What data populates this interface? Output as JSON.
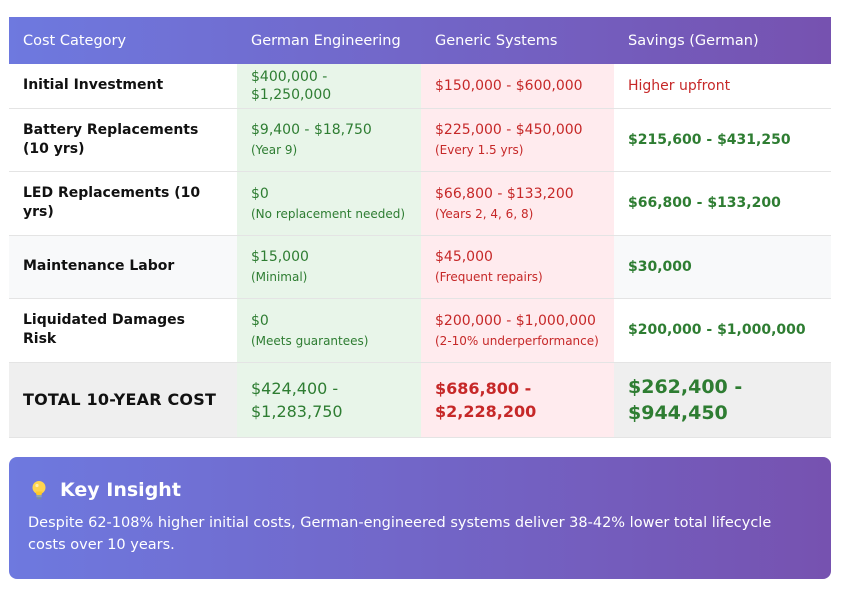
{
  "table": {
    "headers": [
      "Cost Category",
      "German Engineering",
      "Generic Systems",
      "Savings (German)"
    ],
    "rows": [
      {
        "category": "Initial Investment",
        "german": "$400,000 - $1,250,000",
        "german_note": "",
        "generic": "$150,000 - $600,000",
        "generic_note": "",
        "savings": "Higher upfront"
      },
      {
        "category": "Battery Replacements (10 yrs)",
        "german": "$9,400 - $18,750",
        "german_note": "(Year 9)",
        "generic": "$225,000 - $450,000",
        "generic_note": "(Every 1.5 yrs)",
        "savings": "$215,600 - $431,250"
      },
      {
        "category": "LED Replacements (10 yrs)",
        "german": "$0",
        "german_note": "(No replacement needed)",
        "generic": "$66,800 - $133,200",
        "generic_note": "(Years 2, 4, 6, 8)",
        "savings": "$66,800 - $133,200"
      },
      {
        "category": "Maintenance Labor",
        "german": "$15,000",
        "german_note": "(Minimal)",
        "generic": "$45,000",
        "generic_note": "(Frequent repairs)",
        "savings": "$30,000"
      },
      {
        "category": "Liquidated Damages Risk",
        "german": "$0",
        "german_note": "(Meets guarantees)",
        "generic": "$200,000 - $1,000,000",
        "generic_note": "(2-10% underperformance)",
        "savings": "$200,000 - $1,000,000"
      }
    ],
    "total": {
      "category": "TOTAL 10-YEAR COST",
      "german": "$424,400 - $1,283,750",
      "generic": "$686,800 - $2,228,200",
      "savings": "$262,400 - $944,450"
    }
  },
  "insight": {
    "icon": "lightbulb-icon",
    "title": "Key Insight",
    "text": "Despite 62-108% higher initial costs, German-engineered systems deliver 38-42% lower total lifecycle costs over 10 years."
  },
  "colors": {
    "header_gradient_start": "#6e79df",
    "header_gradient_end": "#7652b0",
    "german_bg": "#e8f5e9",
    "german_text": "#2e7d32",
    "generic_bg": "#ffebee",
    "generic_text": "#c62828"
  }
}
